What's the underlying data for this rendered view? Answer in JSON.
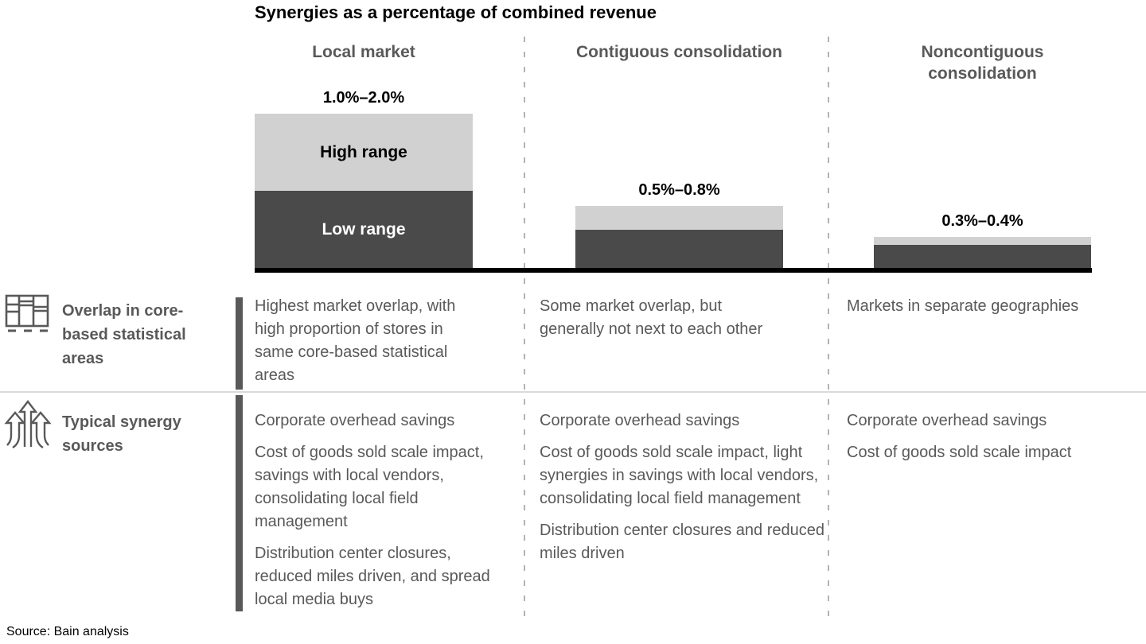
{
  "title": "Synergies as a percentage of combined revenue",
  "source": "Source: Bain analysis",
  "colors": {
    "low_range_bar": "#4a4a4a",
    "high_range_bar": "#d1d1d1",
    "text_gray": "#595959",
    "baseline": "#000000",
    "dashed_divider": "#b3b3b3",
    "row_separator": "#d9d9d9"
  },
  "chart_data": {
    "type": "bar",
    "stacked": true,
    "title": "Synergies as a percentage of combined revenue",
    "unit": "% of combined revenue",
    "categories": [
      "Local market",
      "Contiguous consolidation",
      "Noncontiguous consolidation"
    ],
    "series": [
      {
        "name": "Low range",
        "values": [
          1.0,
          0.5,
          0.3
        ]
      },
      {
        "name": "High range",
        "values": [
          2.0,
          0.8,
          0.4
        ]
      }
    ],
    "series_labels": {
      "high": "High range",
      "low": "Low range"
    },
    "bars": [
      {
        "category": "Local market",
        "low": 1.0,
        "high": 2.0,
        "label": "1.0%–2.0%"
      },
      {
        "category": "Contiguous consolidation",
        "low": 0.5,
        "high": 0.8,
        "label": "0.5%–0.8%"
      },
      {
        "category": "Noncontiguous consolidation",
        "low": 0.3,
        "high": 0.4,
        "label": "0.3%–0.4%"
      }
    ],
    "legend_position": "inside-first-bar",
    "grid": false
  },
  "rows": [
    {
      "label": "Overlap in core-based statistical areas",
      "icon": "store-shelf-grid-icon",
      "cells": [
        [
          "Highest market overlap, with high proportion of stores in same core-based statistical areas"
        ],
        [
          "Some market overlap, but generally not next to each other"
        ],
        [
          "Markets in separate geographies"
        ]
      ]
    },
    {
      "label": "Typical synergy sources",
      "icon": "growth-arrows-icon",
      "cells": [
        [
          "Corporate overhead savings",
          "Cost of goods sold scale impact, savings with local vendors, consolidating local field management",
          "Distribution center closures, reduced miles driven, and spread local media buys"
        ],
        [
          "Corporate overhead savings",
          "Cost of goods sold scale impact, light synergies in savings with local vendors, consolidating local field management",
          "Distribution center closures and reduced miles driven"
        ],
        [
          "Corporate overhead savings",
          "Cost of goods sold scale impact"
        ]
      ]
    }
  ]
}
